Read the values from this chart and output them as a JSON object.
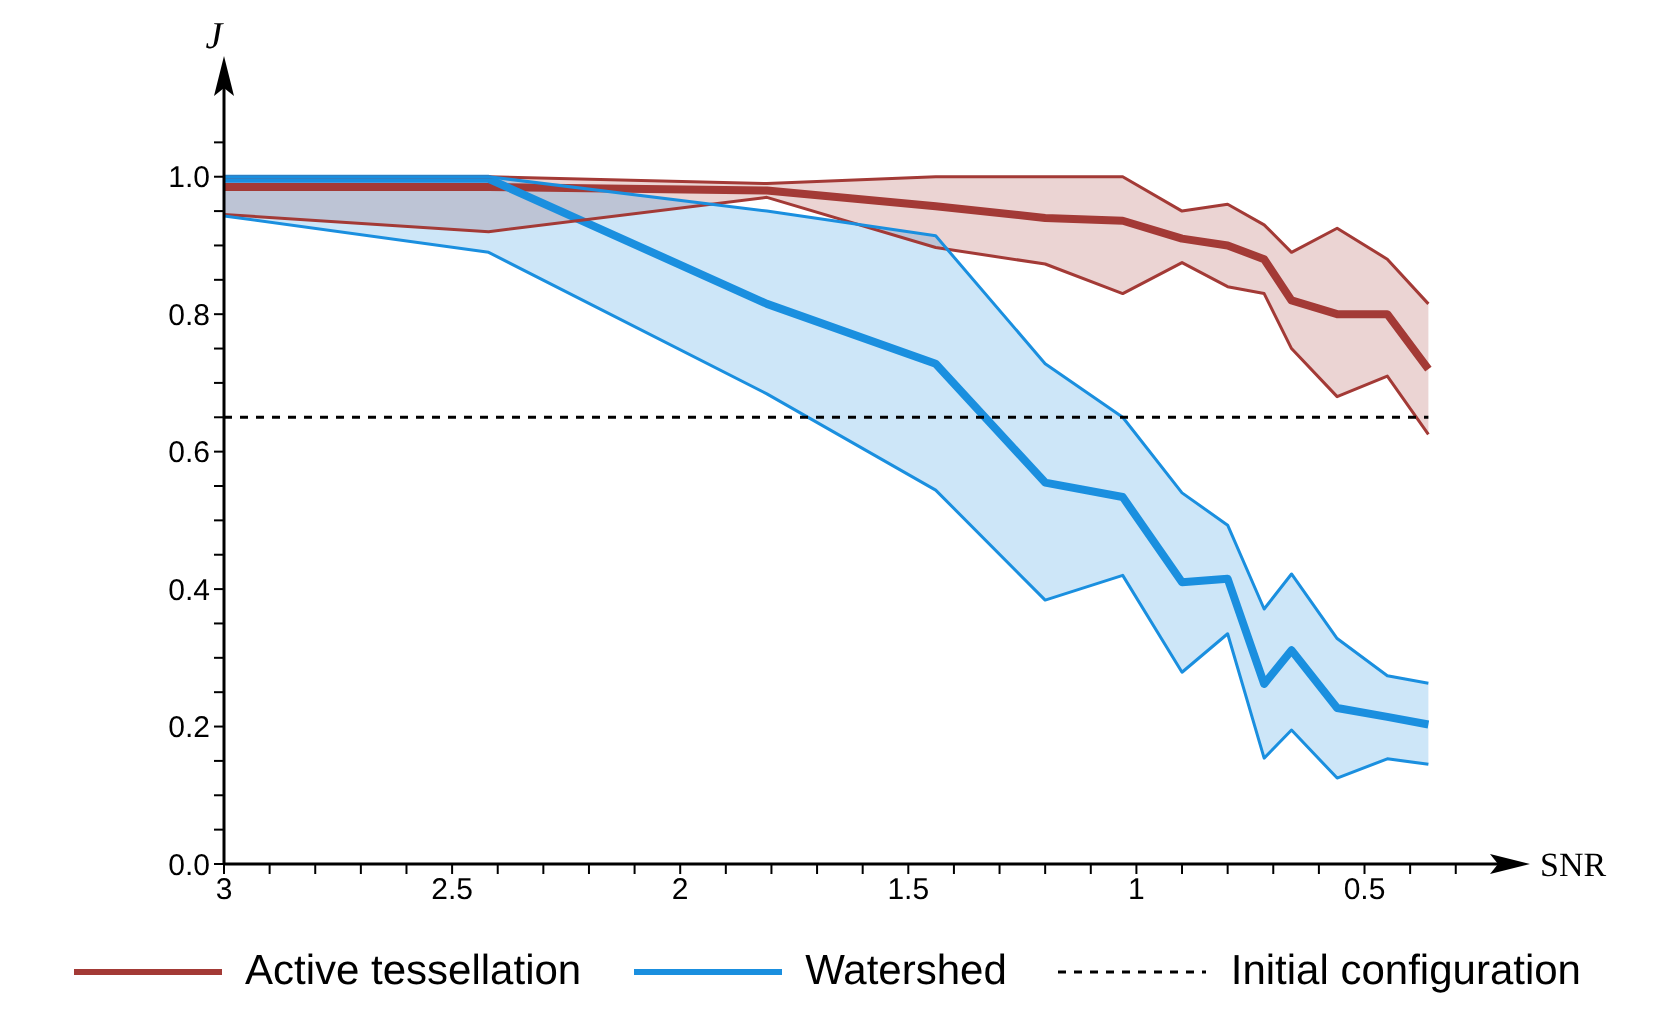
{
  "chart_data": {
    "type": "line",
    "xlabel": "SNR",
    "ylabel": "J",
    "x": [
      3.0,
      2.42,
      1.81,
      1.44,
      1.2,
      1.03,
      0.9,
      0.8,
      0.72,
      0.66,
      0.56,
      0.45,
      0.36
    ],
    "series": [
      {
        "name": "Active tessellation",
        "color": "#a33a36",
        "values": [
          0.985,
          0.985,
          0.98,
          0.957,
          0.94,
          0.936,
          0.91,
          0.9,
          0.88,
          0.82,
          0.8,
          0.8,
          0.72
        ],
        "lower": [
          0.945,
          0.92,
          0.97,
          0.897,
          0.873,
          0.83,
          0.875,
          0.84,
          0.83,
          0.75,
          0.68,
          0.71,
          0.625
        ],
        "upper": [
          1.0,
          1.0,
          0.99,
          1.0,
          1.0,
          1.0,
          0.95,
          0.96,
          0.93,
          0.89,
          0.925,
          0.88,
          0.815
        ]
      },
      {
        "name": "Watershed",
        "color": "#1a8fdf",
        "values": [
          0.997,
          0.997,
          0.815,
          0.728,
          0.555,
          0.534,
          0.41,
          0.415,
          0.262,
          0.311,
          0.227,
          0.214,
          0.203
        ],
        "lower": [
          0.943,
          0.89,
          0.684,
          0.544,
          0.384,
          0.42,
          0.279,
          0.335,
          0.154,
          0.195,
          0.125,
          0.153,
          0.145
        ],
        "upper": [
          1.0,
          1.0,
          0.95,
          0.914,
          0.728,
          0.65,
          0.54,
          0.493,
          0.371,
          0.422,
          0.328,
          0.274,
          0.263
        ]
      },
      {
        "color": "#a33a36",
        "values": [
          0.945,
          0.92,
          0.97,
          0.897,
          0.873,
          0.83,
          0.875,
          0.84,
          0.83,
          0.75,
          0.68,
          0.71,
          0.625
        ]
      },
      {
        "color": "#a33a36",
        "values": [
          1.0,
          1.0,
          0.99,
          1.0,
          1.0,
          1.0,
          0.95,
          0.96,
          0.93,
          0.89,
          0.925,
          0.88,
          0.815
        ]
      },
      {
        "color": "#1a8fdf",
        "values": [
          0.943,
          0.89,
          0.684,
          0.544,
          0.384,
          0.42,
          0.279,
          0.335,
          0.154,
          0.195,
          0.125,
          0.153,
          0.145
        ]
      },
      {
        "color": "#1a8fdf",
        "values": [
          1.0,
          1.0,
          0.95,
          0.914,
          0.728,
          0.65,
          0.54,
          0.493,
          0.371,
          0.422,
          0.328,
          0.274,
          0.263
        ]
      }
    ],
    "ref_lines": [
      {
        "axis": "y",
        "value": 0.65,
        "label": "Initial configuration",
        "color": "#000000",
        "line_style": "dashed"
      }
    ],
    "xlim": [
      3,
      0.26
    ],
    "xticks": [
      3,
      {
        "value": 2.9,
        "label": null
      },
      {
        "value": 2.8,
        "label": null
      },
      {
        "value": 2.7,
        "label": null
      },
      {
        "value": 2.6,
        "label": null
      },
      2.5,
      {
        "value": 2.4,
        "label": null
      },
      {
        "value": 2.3,
        "label": null
      },
      {
        "value": 2.2,
        "label": null
      },
      {
        "value": 2.1,
        "label": null
      },
      2,
      {
        "value": 1.9,
        "label": null
      },
      {
        "value": 1.8,
        "label": null
      },
      {
        "value": 1.7,
        "label": null
      },
      {
        "value": 1.6,
        "label": null
      },
      1.5,
      {
        "value": 1.4,
        "label": null
      },
      {
        "value": 1.3,
        "label": null
      },
      {
        "value": 1.2,
        "label": null
      },
      {
        "value": 1.1,
        "label": null
      },
      1,
      {
        "value": 0.9,
        "label": null
      },
      {
        "value": 0.8,
        "label": null
      },
      {
        "value": 0.7,
        "label": null
      },
      {
        "value": 0.6,
        "label": null
      },
      0.5,
      {
        "value": 0.4,
        "label": null
      },
      {
        "value": 0.3,
        "label": null
      }
    ],
    "ylim": [
      0,
      1.1
    ],
    "yticks": [
      {
        "value": 0,
        "label": "0.0"
      },
      {
        "value": 0.05,
        "label": null
      },
      {
        "value": 0.1,
        "label": null
      },
      {
        "value": 0.15,
        "label": null
      },
      {
        "value": 0.2,
        "label": "0.2"
      },
      {
        "value": 0.25,
        "label": null
      },
      {
        "value": 0.3,
        "label": null
      },
      {
        "value": 0.35,
        "label": null
      },
      {
        "value": 0.4,
        "label": "0.4"
      },
      {
        "value": 0.45,
        "label": null
      },
      {
        "value": 0.5,
        "label": null
      },
      {
        "value": 0.55,
        "label": null
      },
      {
        "value": 0.6,
        "label": "0.6"
      },
      {
        "value": 0.65,
        "label": null
      },
      {
        "value": 0.7,
        "label": null
      },
      {
        "value": 0.75,
        "label": null
      },
      {
        "value": 0.8,
        "label": "0.8"
      },
      {
        "value": 0.85,
        "label": null
      },
      {
        "value": 0.9,
        "label": null
      },
      {
        "value": 0.95,
        "label": null
      },
      {
        "value": 1.0,
        "label": "1.0"
      },
      {
        "value": 1.05,
        "label": null
      }
    ],
    "grid": false,
    "legend": "bottom",
    "marker": "none",
    "line_style": "solid"
  }
}
